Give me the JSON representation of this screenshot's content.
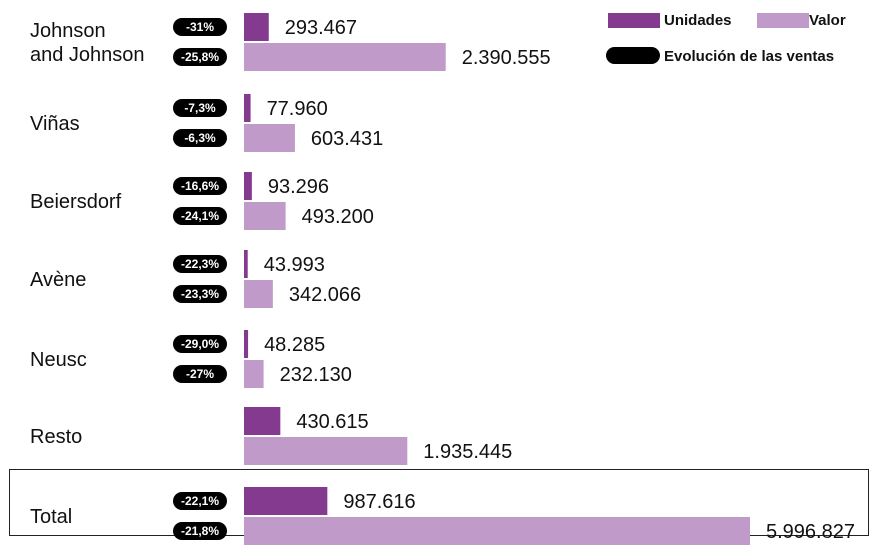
{
  "chart_data": {
    "type": "bar",
    "orientation": "horizontal",
    "categories": [
      "Johnson and Johnson",
      "Viñas",
      "Beiersdorf",
      "Avène",
      "Neusc",
      "Resto",
      "Total"
    ],
    "category_lines": [
      [
        "Johnson",
        "and Johnson"
      ],
      [
        "Viñas"
      ],
      [
        "Beiersdorf"
      ],
      [
        "Avène"
      ],
      [
        "Neusc"
      ],
      [
        "Resto"
      ],
      [
        "Total"
      ]
    ],
    "series": [
      {
        "name": "Unidades",
        "color": "#833a8f",
        "values": [
          293467,
          77960,
          93296,
          43993,
          48285,
          430615,
          987616
        ],
        "value_labels": [
          "293.467",
          "77.960",
          "93.296",
          "43.993",
          "48.285",
          "430.615",
          "987.616"
        ],
        "evolution_labels": [
          "-31%",
          "-7,3%",
          "-16,6%",
          "-22,3%",
          "-29,0%",
          null,
          "-22,1%"
        ]
      },
      {
        "name": "Valor",
        "color": "#c09ac9",
        "values": [
          2390555,
          603431,
          493200,
          342066,
          232130,
          1935445,
          5996827
        ],
        "value_labels": [
          "2.390.555",
          "603.431",
          "493.200",
          "342.066",
          "232.130",
          "1.935.445",
          "5.996.827"
        ],
        "evolution_labels": [
          "-25,8%",
          "-6,3%",
          "-24,1%",
          "-23,3%",
          "-27%",
          null,
          "-21,8%"
        ]
      }
    ],
    "legend": {
      "placement": "top-right",
      "items": [
        {
          "label": "Unidades",
          "color": "#833a8f",
          "shape": "bar"
        },
        {
          "label": "Valor",
          "color": "#c09ac9",
          "shape": "bar"
        },
        {
          "label": "Evolución de las ventas",
          "color": "#000000",
          "shape": "pill"
        }
      ]
    },
    "highlighted_category": "Total",
    "title": "",
    "xlabel": "",
    "ylabel": "",
    "xlim": [
      0,
      5996827
    ],
    "grid": false
  }
}
